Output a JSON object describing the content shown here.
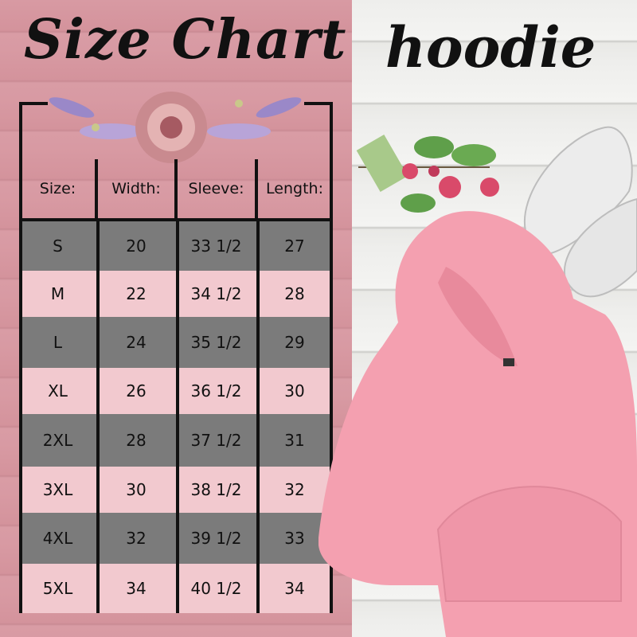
{
  "title": "Size Chart",
  "product": "hoodie",
  "colors": {
    "panel_pink": "#d89aa3",
    "dark_row": "#7b7b7b",
    "light_row": "#f2c9cf",
    "hoodie": "#f4a0b0"
  },
  "table": {
    "headers": [
      "Size:",
      "Width:",
      "Sleeve:",
      "Length:"
    ],
    "rows": [
      [
        "S",
        "20",
        "33 1/2",
        "27"
      ],
      [
        "M",
        "22",
        "34 1/2",
        "28"
      ],
      [
        "L",
        "24",
        "35 1/2",
        "29"
      ],
      [
        "XL",
        "26",
        "36 1/2",
        "30"
      ],
      [
        "2XL",
        "28",
        "37 1/2",
        "31"
      ],
      [
        "3XL",
        "30",
        "38 1/2",
        "32"
      ],
      [
        "4XL",
        "32",
        "39 1/2",
        "33"
      ],
      [
        "5XL",
        "34",
        "40 1/2",
        "34"
      ]
    ]
  }
}
